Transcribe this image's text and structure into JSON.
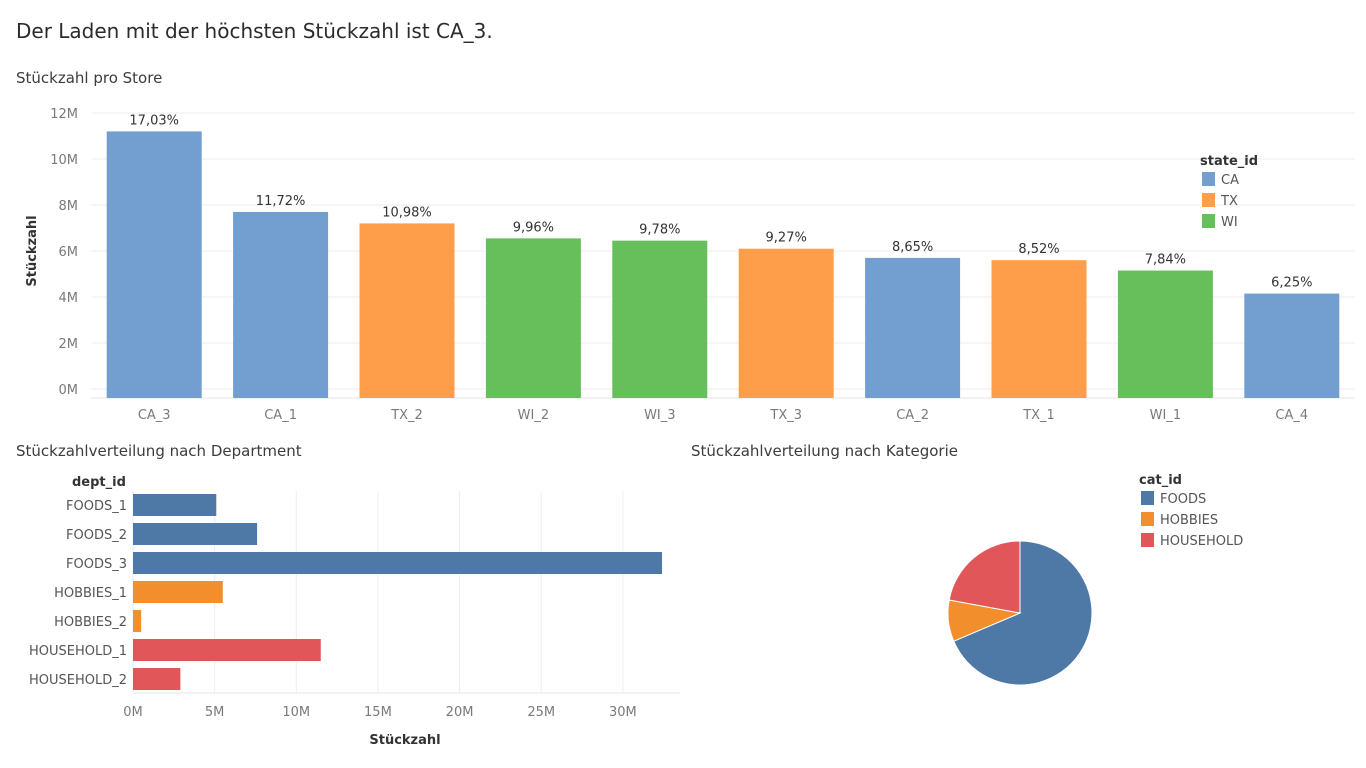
{
  "page": {
    "title": "Der Laden mit der höchsten Stückzahl ist CA_3."
  },
  "chart_data": [
    {
      "id": "store",
      "type": "bar",
      "title": "Stückzahl pro Store",
      "xlabel": "",
      "ylabel": "Stückzahl",
      "ylim": [
        0,
        12000000
      ],
      "y_ticks": [
        {
          "value": 0,
          "label": "0M"
        },
        {
          "value": 2000000,
          "label": "2M"
        },
        {
          "value": 4000000,
          "label": "4M"
        },
        {
          "value": 6000000,
          "label": "6M"
        },
        {
          "value": 8000000,
          "label": "8M"
        },
        {
          "value": 10000000,
          "label": "10M"
        },
        {
          "value": 12000000,
          "label": "12M"
        }
      ],
      "grid": true,
      "legend": {
        "title": "state_id",
        "position": "right",
        "entries": [
          {
            "label": "CA",
            "color": "#729fcf"
          },
          {
            "label": "TX",
            "color": "#ff9e4a"
          },
          {
            "label": "WI",
            "color": "#67bf5c"
          }
        ]
      },
      "categories": [
        "CA_3",
        "CA_1",
        "TX_2",
        "WI_2",
        "WI_3",
        "TX_3",
        "CA_2",
        "TX_1",
        "WI_1",
        "CA_4"
      ],
      "values": [
        11200000,
        7700000,
        7200000,
        6550000,
        6450000,
        6100000,
        5700000,
        5600000,
        5150000,
        4150000
      ],
      "state": [
        "CA",
        "CA",
        "TX",
        "WI",
        "WI",
        "TX",
        "CA",
        "TX",
        "WI",
        "CA"
      ],
      "data_labels": [
        "17,03%",
        "11,72%",
        "10,98%",
        "9,96%",
        "9,78%",
        "9,27%",
        "8,65%",
        "8,52%",
        "7,84%",
        "6,25%"
      ]
    },
    {
      "id": "dept",
      "type": "bar",
      "orientation": "horizontal",
      "title": "Stückzahlverteilung nach Department",
      "category_header": "dept_id",
      "xlabel": "Stückzahl",
      "ylabel": "",
      "xlim": [
        0,
        33500000
      ],
      "x_ticks": [
        {
          "value": 0,
          "label": "0M"
        },
        {
          "value": 5000000,
          "label": "5M"
        },
        {
          "value": 10000000,
          "label": "10M"
        },
        {
          "value": 15000000,
          "label": "15M"
        },
        {
          "value": 20000000,
          "label": "20M"
        },
        {
          "value": 25000000,
          "label": "25M"
        },
        {
          "value": 30000000,
          "label": "30M"
        }
      ],
      "grid": true,
      "categories": [
        "FOODS_1",
        "FOODS_2",
        "FOODS_3",
        "HOBBIES_1",
        "HOBBIES_2",
        "HOUSEHOLD_1",
        "HOUSEHOLD_2"
      ],
      "values": [
        5100000,
        7600000,
        32400000,
        5500000,
        500000,
        11500000,
        2900000
      ],
      "category_group": [
        "FOODS",
        "FOODS",
        "FOODS",
        "HOBBIES",
        "HOBBIES",
        "HOUSEHOLD",
        "HOUSEHOLD"
      ]
    },
    {
      "id": "cat",
      "type": "pie",
      "title": "Stückzahlverteilung nach Kategorie",
      "legend": {
        "title": "cat_id",
        "position": "right",
        "entries": [
          {
            "label": "FOODS",
            "color": "#4e79a7"
          },
          {
            "label": "HOBBIES",
            "color": "#f28e2b"
          },
          {
            "label": "HOUSEHOLD",
            "color": "#e15759"
          }
        ]
      },
      "categories": [
        "FOODS",
        "HOBBIES",
        "HOUSEHOLD"
      ],
      "values": [
        68.6,
        9.3,
        22.1
      ]
    }
  ]
}
